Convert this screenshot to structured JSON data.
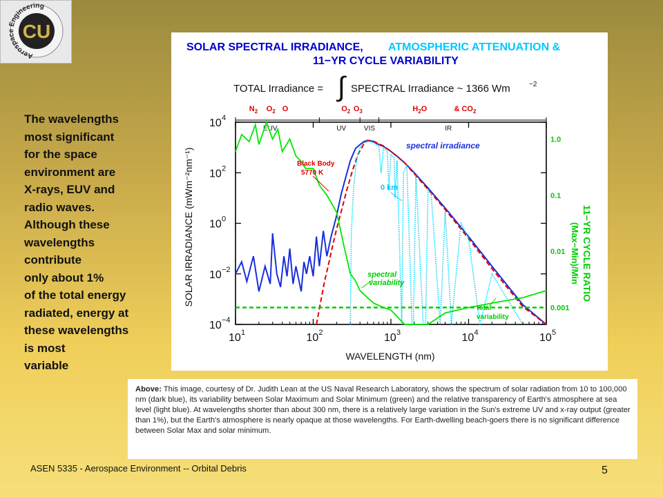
{
  "logo": {
    "text": "CU",
    "ring_text": "Aerospace Engineering"
  },
  "side_text": "The wavelengths\nmost significant\nfor the space\nenvironment are\nX-rays, EUV and\nradio waves.\nAlthough these\nwavelengths\ncontribute\nonly about 1%\nof the total energy\nradiated, energy at\nthese wavelengths\nis most\nvariable",
  "chart_data": {
    "type": "line",
    "title_part1": "SOLAR SPECTRAL IRRADIANCE,",
    "title_part2": "ATMOSPHERIC ATTENUATION &",
    "title_line2": "11−YR CYCLE VARIABILITY",
    "formula_left": "TOTAL Irradiance =",
    "formula_right": "SPECTRAL Irradiance ~ 1366 Wm",
    "formula_exp": "−2",
    "xlabel": "WAVELENGTH (nm)",
    "ylabel_left": "SOLAR IRRADIANCE (mWm⁻²nm⁻¹)",
    "ylabel_right_1": "11−YR CYCLE RATIO",
    "ylabel_right_2": "(Max−Min)/Min",
    "x_log": true,
    "y_log": true,
    "xlim": [
      10,
      100000
    ],
    "ylim": [
      0.0001,
      10000
    ],
    "x_ticks": [
      {
        "base": "10",
        "exp": "1",
        "v": 10
      },
      {
        "base": "10",
        "exp": "2",
        "v": 100
      },
      {
        "base": "10",
        "exp": "3",
        "v": 1000
      },
      {
        "base": "10",
        "exp": "4",
        "v": 10000
      },
      {
        "base": "10",
        "exp": "5",
        "v": 100000
      }
    ],
    "y_ticks": [
      {
        "base": "10",
        "exp": "−4",
        "v": 0.0001
      },
      {
        "base": "10",
        "exp": "−2",
        "v": 0.01
      },
      {
        "base": "10",
        "exp": "0",
        "v": 1
      },
      {
        "base": "10",
        "exp": "2",
        "v": 100
      },
      {
        "base": "10",
        "exp": "4",
        "v": 10000
      }
    ],
    "right_ticks": [
      {
        "label": "1.0",
        "v": 1
      },
      {
        "label": "0.1",
        "v": 0.1
      },
      {
        "label": "0.01",
        "v": 0.01
      },
      {
        "label": "0.001",
        "v": 0.001
      }
    ],
    "right_ylim": [
      0.0005,
      2
    ],
    "absorbers_left": [
      {
        "text": "N",
        "sub": "2",
        "x": 15
      },
      {
        "text": "O",
        "sub": "2",
        "x": 25
      },
      {
        "text": "O",
        "sub": "",
        "x": 40
      },
      {
        "text": "O",
        "sub": "2",
        "x": 230
      },
      {
        "text": "O",
        "sub": "3",
        "x": 330
      }
    ],
    "absorbers_right": [
      {
        "text": "H",
        "sub": "2",
        "text2": "O",
        "x": 1900
      },
      {
        "text": "& CO",
        "sub": "2",
        "text2": "",
        "x": 6500
      }
    ],
    "bands": [
      {
        "name": "EUV",
        "x": 28
      },
      {
        "name": "UV",
        "x": 230
      },
      {
        "name": "VIS",
        "x": 530
      },
      {
        "name": "IR",
        "x": 5500
      }
    ],
    "band_bounds": [
      10,
      120,
      400,
      700,
      100000
    ],
    "annotations": {
      "spectral_irradiance": "spectral irradiance",
      "black_body_1": "Black Body",
      "black_body_2": "5770 K",
      "zero_km": "0 km",
      "spectral_variability_1": "spectral",
      "spectral_variability_2": "variability",
      "total_variability_1": "total",
      "total_variability_2": "variability"
    },
    "series": [
      {
        "name": "spectral irradiance",
        "color": "#1a2fd8",
        "x": [
          10,
          12,
          14,
          17,
          20,
          24,
          28,
          30,
          34,
          38,
          42,
          46,
          50,
          55,
          60,
          65,
          70,
          76,
          82,
          90,
          100,
          110,
          120,
          135,
          150,
          170,
          200,
          230,
          260,
          300,
          350,
          400,
          450,
          500,
          550,
          600,
          700,
          800,
          1000,
          1200,
          1500,
          2000,
          3000,
          5000,
          10000,
          20000,
          50000,
          100000
        ],
        "y": [
          0.01,
          0.03,
          0.005,
          0.05,
          0.002,
          0.02,
          0.004,
          0.4,
          0.01,
          0.003,
          0.05,
          0.008,
          0.1,
          0.004,
          0.02,
          0.006,
          0.002,
          0.03,
          0.01,
          0.05,
          0.008,
          0.3,
          0.02,
          0.5,
          0.05,
          0.3,
          2,
          15,
          60,
          300,
          900,
          1300,
          1700,
          1900,
          1850,
          1700,
          1300,
          1100,
          700,
          450,
          250,
          100,
          25,
          4,
          0.3,
          0.02,
          0.0006,
          5e-05
        ]
      },
      {
        "name": "Black Body 5770 K",
        "color": "#e00000",
        "x": [
          110,
          125,
          140,
          160,
          180,
          200,
          230,
          270,
          320,
          380,
          450,
          500,
          600,
          800,
          1000,
          1500,
          2000,
          3000,
          5000,
          10000,
          20000,
          50000,
          100000
        ],
        "y": [
          0.0001,
          0.0008,
          0.005,
          0.03,
          0.15,
          0.6,
          3,
          20,
          120,
          550,
          1400,
          1850,
          1750,
          1150,
          700,
          250,
          90,
          22,
          3.5,
          0.25,
          0.016,
          0.0005,
          3e-05
        ]
      },
      {
        "name": "0 km",
        "color": "#00d8ff",
        "x": [
          300,
          310,
          330,
          360,
          400,
          450,
          500,
          550,
          600,
          700,
          750,
          800,
          900,
          940,
          1000,
          1100,
          1130,
          1200,
          1380,
          1450,
          1600,
          1870,
          1950,
          2100,
          2600,
          2800,
          3000,
          3300,
          4300,
          5000,
          6000,
          8000,
          10000,
          14000,
          20000,
          50000
        ],
        "y": [
          0.0001,
          0.5,
          20,
          300,
          1000,
          1500,
          1750,
          1650,
          1500,
          1100,
          100,
          900,
          700,
          20,
          500,
          400,
          10,
          300,
          0.0001,
          100,
          200,
          0.0001,
          0.0001,
          80,
          0.0001,
          0.0001,
          20,
          15,
          0.0001,
          3,
          0.0001,
          1,
          0.25,
          0.0001,
          0.01,
          0.0001
        ]
      },
      {
        "name": "11-yr cycle variability",
        "color": "#00e600",
        "x": [
          10,
          12,
          15,
          18,
          20,
          25,
          30,
          35,
          40,
          50,
          60,
          70,
          80,
          100,
          120,
          150,
          200,
          250,
          300,
          350,
          400,
          500,
          600,
          800,
          1000,
          1500,
          2000,
          3000,
          5000,
          10000,
          20000,
          50000,
          100000
        ],
        "ratio": [
          0.6,
          1.2,
          0.9,
          1.8,
          0.8,
          2.5,
          1.0,
          1.5,
          0.6,
          1.0,
          0.5,
          0.4,
          0.3,
          0.3,
          0.15,
          0.1,
          0.05,
          0.012,
          0.004,
          0.003,
          0.002,
          0.0015,
          0.0012,
          0.001,
          0.0009,
          0.0005,
          0.0003,
          0.0005,
          0.0008,
          0.001,
          0.0012,
          0.0015,
          0.002
        ]
      },
      {
        "name": "total variability",
        "color": "#00cc00",
        "ratio_constant": 0.001
      }
    ]
  },
  "caption": {
    "lead": "Above:",
    "body": " This image, courtesy of Dr. Judith Lean at the US Naval Research Laboratory, shows the spectrum of solar radiation from 10 to 100,000 nm (dark blue), its variability between Solar Maximum and Solar Minimum (green) and the relative transparency of Earth's atmosphere at sea level (light blue). At wavelengths shorter than about 300 nm, there is a relatively large variation in the Sun's extreme UV and x-ray output (greater than 1%), but the Earth's atmosphere is nearly opaque at those wavelengths. For Earth-dwelling beach-goers there is no significant difference between Solar Max and solar minimum."
  },
  "footer": "ASEN 5335 - Aerospace Environment -- Orbital Debris",
  "page_number": "5",
  "colors": {
    "dark_blue": "#1a2fd8",
    "red": "#e00000",
    "light_blue": "#00d8ff",
    "green": "#00e600",
    "title_blue": "#0000cc",
    "title_cyan": "#00c8ff"
  }
}
